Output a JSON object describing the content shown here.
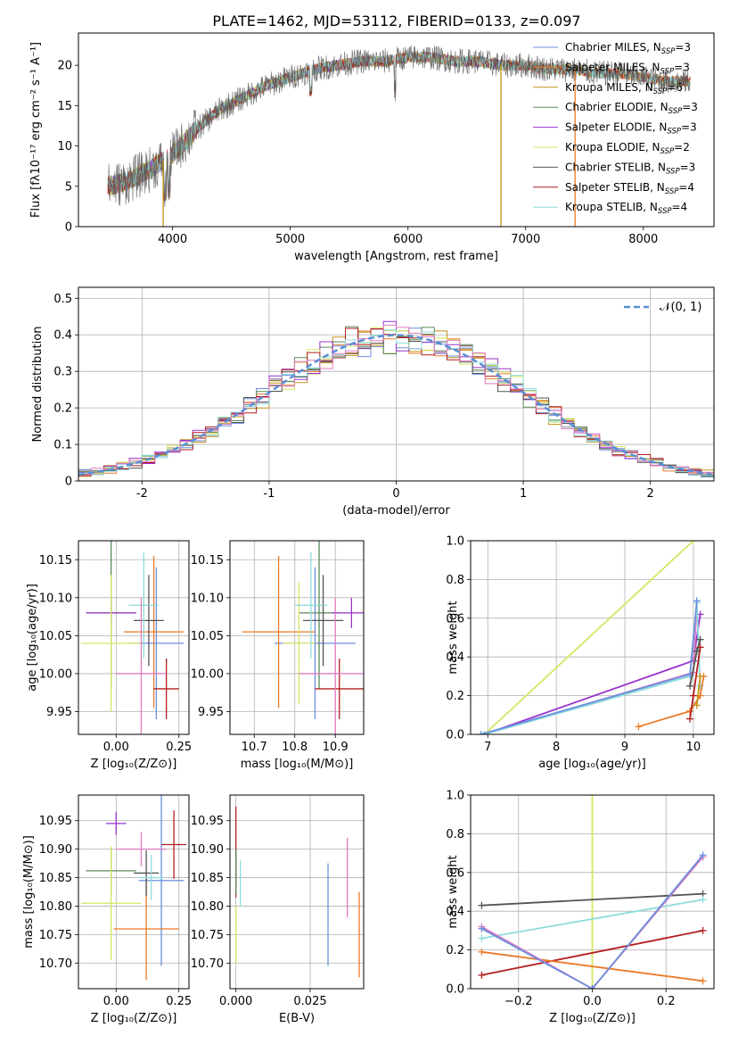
{
  "figure_title": "PLATE=1462, MJD=53112, FIBERID=0133, z=0.097",
  "colors": {
    "chabrier_miles": "#6b8ede",
    "salpeter_miles": "#e97b29",
    "kroupa_miles": "#c19419",
    "chabrier_elodie": "#5b8a5b",
    "salpeter_elodie": "#9932cc",
    "kroupa_elodie": "#d7e564",
    "chabrier_stelib": "#555555",
    "salpeter_stelib": "#b11e1e",
    "kroupa_stelib": "#8fdcdc",
    "pink": "#e07ac0",
    "gaussian": "#5a8fd6"
  },
  "legend": [
    {
      "name": "Chabrier MILES",
      "nssp": "3",
      "color_key": "chabrier_miles"
    },
    {
      "name": "Salpeter MILES",
      "nssp": "3",
      "color_key": "salpeter_miles"
    },
    {
      "name": "Kroupa MILES",
      "nssp": "6",
      "color_key": "kroupa_miles"
    },
    {
      "name": "Chabrier ELODIE",
      "nssp": "3",
      "color_key": "chabrier_elodie"
    },
    {
      "name": "Salpeter ELODIE",
      "nssp": "3",
      "color_key": "salpeter_elodie"
    },
    {
      "name": "Kroupa ELODIE",
      "nssp": "2",
      "color_key": "kroupa_elodie"
    },
    {
      "name": "Chabrier STELIB",
      "nssp": "3",
      "color_key": "chabrier_stelib"
    },
    {
      "name": "Salpeter STELIB",
      "nssp": "4",
      "color_key": "salpeter_stelib"
    },
    {
      "name": "Kroupa STELIB",
      "nssp": "4",
      "color_key": "kroupa_stelib"
    }
  ],
  "chart_data": [
    {
      "id": "spectrum",
      "type": "line",
      "xlabel": "wavelength [Angstrom, rest frame]",
      "ylabel": "Flux [fλ10⁻¹⁷ erg cm⁻² s⁻¹ A⁻¹]",
      "xlim": [
        3200,
        8600
      ],
      "ylim": [
        0,
        24
      ],
      "xticks": [
        4000,
        5000,
        6000,
        7000,
        8000
      ],
      "yticks": [
        0,
        5,
        10,
        15,
        20
      ],
      "continuum": {
        "x": [
          3450,
          3600,
          3800,
          4000,
          4200,
          4400,
          4600,
          4800,
          5000,
          5200,
          5400,
          5600,
          5800,
          6000,
          6200,
          6400,
          6600,
          6800,
          7000,
          7200,
          7400,
          7600,
          7800,
          8000,
          8200,
          8400
        ],
        "y": [
          5,
          5.5,
          7,
          9,
          12,
          14.5,
          16,
          17.5,
          18.5,
          19.5,
          20,
          20.5,
          20.5,
          21,
          21,
          20.5,
          20.5,
          20,
          20,
          19.5,
          19.5,
          19,
          19,
          18.5,
          18,
          18
        ]
      },
      "spikes": [
        {
          "x": 3920,
          "series": "kroupa_miles"
        },
        {
          "x": 6790,
          "series": "kroupa_miles"
        },
        {
          "x": 7420,
          "series": "salpeter_miles"
        }
      ],
      "legend_position": "right"
    },
    {
      "id": "residuals",
      "type": "histogram",
      "xlabel": "(data-model)/error",
      "ylabel": "Normed distribution",
      "xlim": [
        -2.5,
        2.5
      ],
      "ylim": [
        0,
        0.53
      ],
      "xticks": [
        -2,
        -1,
        0,
        1,
        2
      ],
      "yticks": [
        0,
        0.1,
        0.2,
        0.3,
        0.4,
        0.5
      ],
      "legend": "𝒩(0, 1)",
      "legend_position": "top-right",
      "bin_width": 0.1,
      "gaussian": {
        "mean": 0,
        "sigma": 1
      }
    },
    {
      "id": "age_vs_Z",
      "type": "errorbar",
      "xlabel": "Z [log₁₀(Z/Z⊙)]",
      "ylabel": "age  [log₁₀(age/yr)]",
      "xlim": [
        -0.15,
        0.29
      ],
      "ylim": [
        9.92,
        10.175
      ],
      "xticks": [
        0.0,
        0.25
      ],
      "xticklabels": [
        "0.00",
        "0.25"
      ],
      "yticks": [
        9.95,
        10.0,
        10.05,
        10.1,
        10.15
      ],
      "yticklabels": [
        "9.95",
        "10.00",
        "10.05",
        "10.10",
        "10.15"
      ],
      "points": [
        {
          "series": "chabrier_miles",
          "x": 0.16,
          "xerr": 0.11,
          "y": 10.04,
          "yerr": 0.1
        },
        {
          "series": "salpeter_miles",
          "x": 0.15,
          "xerr": 0.12,
          "y": 10.055,
          "yerr": 0.1
        },
        {
          "series": "chabrier_elodie",
          "x": -0.02,
          "xerr": 0.1,
          "y": 10.08,
          "yerr": 0.1
        },
        {
          "series": "salpeter_elodie",
          "x": -0.02,
          "xerr": 0.1,
          "y": 10.08,
          "yerr": 0.02
        },
        {
          "series": "kroupa_elodie",
          "x": -0.02,
          "xerr": 0.12,
          "y": 10.04,
          "yerr": 0.09
        },
        {
          "series": "chabrier_stelib",
          "x": 0.13,
          "xerr": 0.06,
          "y": 10.07,
          "yerr": 0.06
        },
        {
          "series": "salpeter_stelib",
          "x": 0.2,
          "xerr": 0.05,
          "y": 9.98,
          "yerr": 0.04
        },
        {
          "series": "kroupa_stelib",
          "x": 0.11,
          "xerr": 0.06,
          "y": 10.09,
          "yerr": 0.07
        },
        {
          "series": "pink",
          "x": 0.1,
          "xerr": 0.1,
          "y": 10.0,
          "yerr": 0.1
        }
      ]
    },
    {
      "id": "age_vs_mass",
      "type": "errorbar",
      "xlabel": "mass [log₁₀(M/M⊙)]",
      "ylabel": "",
      "xlim": [
        10.64,
        10.97
      ],
      "ylim": [
        9.92,
        10.175
      ],
      "xticks": [
        10.7,
        10.8,
        10.9
      ],
      "xticklabels": [
        "10.7",
        "10.8",
        "10.9"
      ],
      "yticks": [
        9.95,
        10.0,
        10.05,
        10.1,
        10.15
      ],
      "yticklabels": [
        "9.95",
        "10.00",
        "10.05",
        "10.10",
        "10.15"
      ],
      "points": [
        {
          "series": "chabrier_miles",
          "x": 10.85,
          "xerr": 0.1,
          "y": 10.04,
          "yerr": 0.1
        },
        {
          "series": "salpeter_miles",
          "x": 10.76,
          "xerr": 0.09,
          "y": 10.055,
          "yerr": 0.1
        },
        {
          "series": "chabrier_elodie",
          "x": 10.86,
          "xerr": 0.05,
          "y": 10.08,
          "yerr": 0.1
        },
        {
          "series": "salpeter_elodie",
          "x": 10.94,
          "xerr": 0.05,
          "y": 10.08,
          "yerr": 0.02
        },
        {
          "series": "kroupa_elodie",
          "x": 10.81,
          "xerr": 0.04,
          "y": 10.04,
          "yerr": 0.08
        },
        {
          "series": "chabrier_stelib",
          "x": 10.87,
          "xerr": 0.05,
          "y": 10.07,
          "yerr": 0.06
        },
        {
          "series": "salpeter_stelib",
          "x": 10.91,
          "xerr": 0.06,
          "y": 9.98,
          "yerr": 0.04
        },
        {
          "series": "kroupa_stelib",
          "x": 10.84,
          "xerr": 0.04,
          "y": 10.09,
          "yerr": 0.07
        },
        {
          "series": "pink",
          "x": 10.9,
          "xerr": 0.09,
          "y": 10.0,
          "yerr": 0.1
        }
      ]
    },
    {
      "id": "weight_vs_age",
      "type": "line",
      "xlabel": "age  [log₁₀(age/yr)]",
      "ylabel": "mass weight",
      "xlim": [
        6.75,
        10.3
      ],
      "ylim": [
        0,
        1
      ],
      "xticks": [
        7,
        8,
        9,
        10
      ],
      "yticks": [
        0,
        0.2,
        0.4,
        0.6,
        0.8,
        1.0
      ],
      "yticklabels": [
        "0.0",
        "0.2",
        "0.4",
        "0.6",
        "0.8",
        "1.0"
      ],
      "series": [
        {
          "series": "kroupa_elodie",
          "x": [
            6.95,
            10.0
          ],
          "y": [
            0.0,
            1.0
          ]
        },
        {
          "series": "salpeter_elodie",
          "x": [
            6.95,
            10.0,
            10.1
          ],
          "y": [
            0.0,
            0.38,
            0.62
          ]
        },
        {
          "series": "pink",
          "x": [
            6.95,
            10.0,
            10.05
          ],
          "y": [
            0.0,
            0.32,
            0.68
          ]
        },
        {
          "series": "kroupa_stelib",
          "x": [
            6.95,
            9.95,
            10.05,
            10.1
          ],
          "y": [
            0.0,
            0.3,
            0.68,
            0.25
          ]
        },
        {
          "series": "chabrier_miles",
          "x": [
            6.9,
            9.95,
            10.05
          ],
          "y": [
            0.0,
            0.31,
            0.69
          ]
        },
        {
          "series": "salpeter_miles",
          "x": [
            9.2,
            9.95,
            10.1,
            10.15
          ],
          "y": [
            0.04,
            0.12,
            0.2,
            0.3
          ]
        },
        {
          "series": "chabrier_stelib",
          "x": [
            9.95,
            10.05,
            10.1
          ],
          "y": [
            0.25,
            0.43,
            0.49
          ]
        },
        {
          "series": "salpeter_stelib",
          "x": [
            9.95,
            10.0,
            10.1
          ],
          "y": [
            0.08,
            0.2,
            0.45
          ]
        },
        {
          "series": "kroupa_miles",
          "x": [
            10.05,
            10.1
          ],
          "y": [
            0.15,
            0.3
          ]
        }
      ]
    },
    {
      "id": "mass_vs_Z",
      "type": "errorbar",
      "xlabel": "Z [log₁₀(Z/Z⊙)]",
      "ylabel": "mass [log₁₀(M/M⊙)]",
      "xlim": [
        -0.15,
        0.29
      ],
      "ylim": [
        10.655,
        10.995
      ],
      "xticks": [
        0.0,
        0.25
      ],
      "xticklabels": [
        "0.00",
        "0.25"
      ],
      "yticks": [
        10.7,
        10.75,
        10.8,
        10.85,
        10.9,
        10.95
      ],
      "yticklabels": [
        "10.70",
        "10.75",
        "10.80",
        "10.85",
        "10.90",
        "10.95"
      ],
      "points": [
        {
          "series": "chabrier_miles",
          "x": 0.18,
          "xerr": 0.09,
          "y": 10.845,
          "yerr": 0.15
        },
        {
          "series": "salpeter_miles",
          "x": 0.12,
          "xerr": 0.13,
          "y": 10.76,
          "yerr": 0.09
        },
        {
          "series": "chabrier_elodie",
          "x": -0.02,
          "xerr": 0.1,
          "y": 10.862,
          "yerr": 0.04
        },
        {
          "series": "salpeter_elodie",
          "x": 0.0,
          "xerr": 0.04,
          "y": 10.945,
          "yerr": 0.02
        },
        {
          "series": "kroupa_elodie",
          "x": -0.02,
          "xerr": 0.12,
          "y": 10.805,
          "yerr": 0.1
        },
        {
          "series": "chabrier_stelib",
          "x": 0.12,
          "xerr": 0.05,
          "y": 10.858,
          "yerr": 0.04
        },
        {
          "series": "salpeter_stelib",
          "x": 0.23,
          "xerr": 0.05,
          "y": 10.908,
          "yerr": 0.06
        },
        {
          "series": "kroupa_stelib",
          "x": 0.14,
          "xerr": 0.05,
          "y": 10.85,
          "yerr": 0.04
        },
        {
          "series": "pink",
          "x": 0.1,
          "xerr": 0.1,
          "y": 10.9,
          "yerr": 0.03
        }
      ]
    },
    {
      "id": "mass_vs_ebv",
      "type": "errorbar",
      "xlabel": "E(B-V)",
      "ylabel": "",
      "xlim": [
        -0.002,
        0.043
      ],
      "ylim": [
        10.655,
        10.995
      ],
      "xticks": [
        0.0,
        0.025
      ],
      "xticklabels": [
        "0.000",
        "0.025"
      ],
      "yticks": [
        10.7,
        10.75,
        10.8,
        10.85,
        10.9,
        10.95
      ],
      "yticklabels": [
        "10.70",
        "10.75",
        "10.80",
        "10.85",
        "10.90",
        "10.95"
      ],
      "points": [
        {
          "series": "salpeter_stelib",
          "x": 0.0,
          "xerr": 0,
          "y": 10.895,
          "yerr": 0.08
        },
        {
          "series": "chabrier_elodie",
          "x": 0.0,
          "xerr": 0,
          "y": 10.86,
          "yerr": 0.04
        },
        {
          "series": "kroupa_elodie",
          "x": 0.0,
          "xerr": 0,
          "y": 10.75,
          "yerr": 0.05
        },
        {
          "series": "kroupa_stelib",
          "x": 0.0015,
          "xerr": 0,
          "y": 10.84,
          "yerr": 0.04
        },
        {
          "series": "chabrier_miles",
          "x": 0.031,
          "xerr": 0,
          "y": 10.785,
          "yerr": 0.09
        },
        {
          "series": "pink",
          "x": 0.0375,
          "xerr": 0,
          "y": 10.85,
          "yerr": 0.07
        },
        {
          "series": "salpeter_miles",
          "x": 0.0415,
          "xerr": 0,
          "y": 10.75,
          "yerr": 0.075
        }
      ]
    },
    {
      "id": "weight_vs_Z",
      "type": "line",
      "xlabel": "Z [log₁₀(Z/Z⊙)]",
      "ylabel": "mass weight",
      "xlim": [
        -0.33,
        0.33
      ],
      "ylim": [
        0,
        1
      ],
      "xticks": [
        -0.2,
        0.0,
        0.2
      ],
      "xticklabels": [
        "−0.2",
        "0.0",
        "0.2"
      ],
      "yticks": [
        0,
        0.2,
        0.4,
        0.6,
        0.8,
        1.0
      ],
      "yticklabels": [
        "0.0",
        "0.2",
        "0.4",
        "0.6",
        "0.8",
        "1.0"
      ],
      "series": [
        {
          "series": "kroupa_elodie",
          "x": [
            0.0,
            0.0
          ],
          "y": [
            0.0,
            1.0
          ]
        },
        {
          "series": "chabrier_stelib",
          "x": [
            -0.3,
            0.3
          ],
          "y": [
            0.43,
            0.49
          ]
        },
        {
          "series": "kroupa_stelib",
          "x": [
            -0.3,
            0.3
          ],
          "y": [
            0.26,
            0.46
          ]
        },
        {
          "series": "salpeter_stelib",
          "x": [
            -0.3,
            0.3
          ],
          "y": [
            0.07,
            0.3
          ]
        },
        {
          "series": "salpeter_miles",
          "x": [
            -0.3,
            0.3
          ],
          "y": [
            0.19,
            0.04
          ]
        },
        {
          "series": "pink",
          "x": [
            -0.3,
            0.0,
            0.3
          ],
          "y": [
            0.32,
            0.0,
            0.68
          ]
        },
        {
          "series": "chabrier_miles",
          "x": [
            -0.3,
            0.0,
            0.3
          ],
          "y": [
            0.31,
            0.0,
            0.69
          ]
        }
      ]
    }
  ]
}
